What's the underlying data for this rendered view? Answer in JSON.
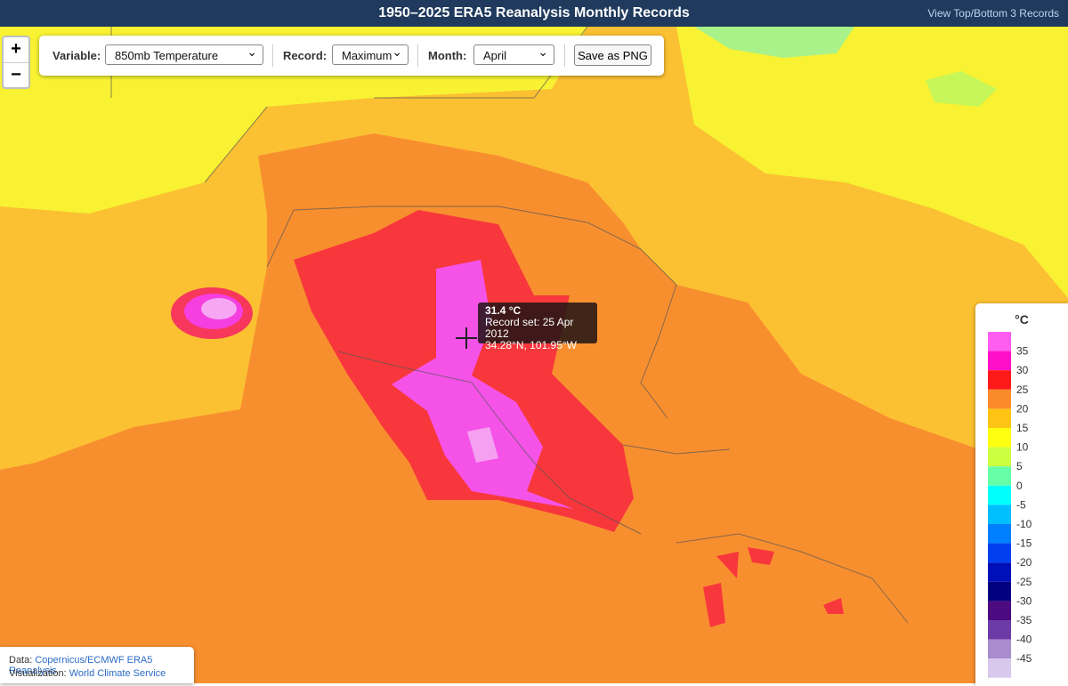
{
  "header": {
    "title": "1950–2025 ERA5 Reanalysis Monthly Records",
    "link": "View Top/Bottom 3 Records"
  },
  "zoom": {
    "in": "+",
    "out": "−"
  },
  "controls": {
    "variable_label": "Variable:",
    "variable": "850mb Temperature",
    "record_label": "Record:",
    "record": "Maximum",
    "month_label": "Month:",
    "month": "April",
    "save": "Save as PNG"
  },
  "tooltip": {
    "value": "31.4 °C",
    "record": "Record set: 25 Apr 2012",
    "location": "34.28°N, 101.95°W"
  },
  "legend": {
    "title": "°C",
    "labels": [
      35,
      30,
      25,
      20,
      15,
      10,
      5,
      0,
      -5,
      -10,
      -15,
      -20,
      -25,
      -30,
      -35,
      -40,
      -45
    ],
    "colors": [
      "#ff5cf0",
      "#ff10c8",
      "#ff1a1a",
      "#fb8a2a",
      "#ffc414",
      "#ffff10",
      "#ccff40",
      "#66ffa8",
      "#00ffff",
      "#00bfff",
      "#0080ff",
      "#0040ee",
      "#0010b8",
      "#000080",
      "#4b0a80",
      "#6e3aa6",
      "#a88ccc",
      "#d8c8ec",
      "#ffffff"
    ]
  },
  "attribution": {
    "data_label": "Data:",
    "data_link": "Copernicus/ECMWF ERA5 Reanalysis",
    "vis_label": "Visualization:",
    "vis_link": "World Climate Service"
  }
}
